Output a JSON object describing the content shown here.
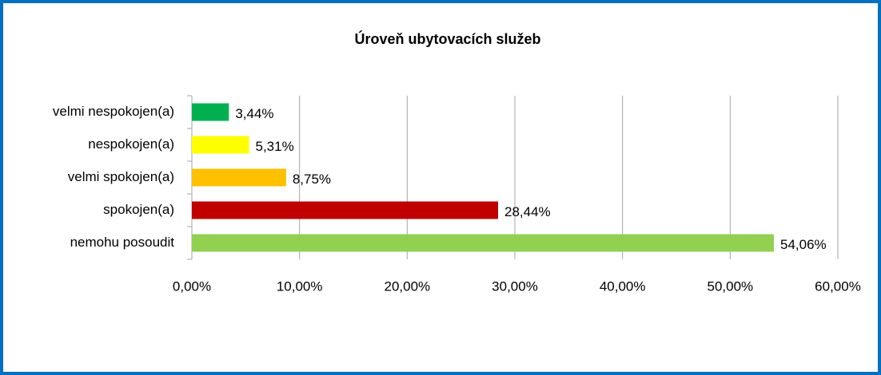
{
  "chart_data": {
    "type": "hbar",
    "title": "Úroveň ubytovacích služeb",
    "categories": [
      "velmi nespokojen(a)",
      "nespokojen(a)",
      "velmi spokojen(a)",
      "spokojen(a)",
      "nemohu posoudit"
    ],
    "values": [
      3.44,
      5.31,
      8.75,
      28.44,
      54.06
    ],
    "value_labels": [
      "3,44%",
      "5,31%",
      "8,75%",
      "28,44%",
      "54,06%"
    ],
    "colors": [
      "#00b050",
      "#ffff00",
      "#ffc000",
      "#c00000",
      "#92d050"
    ],
    "xlim": [
      0,
      60
    ],
    "xticks": [
      {
        "value": 0,
        "label": "0,00%"
      },
      {
        "value": 10,
        "label": "10,00%"
      },
      {
        "value": 20,
        "label": "20,00%"
      },
      {
        "value": 30,
        "label": "30,00%"
      },
      {
        "value": 40,
        "label": "40,00%"
      },
      {
        "value": 50,
        "label": "50,00%"
      },
      {
        "value": 60,
        "label": "60,00%"
      }
    ],
    "grid": true
  }
}
